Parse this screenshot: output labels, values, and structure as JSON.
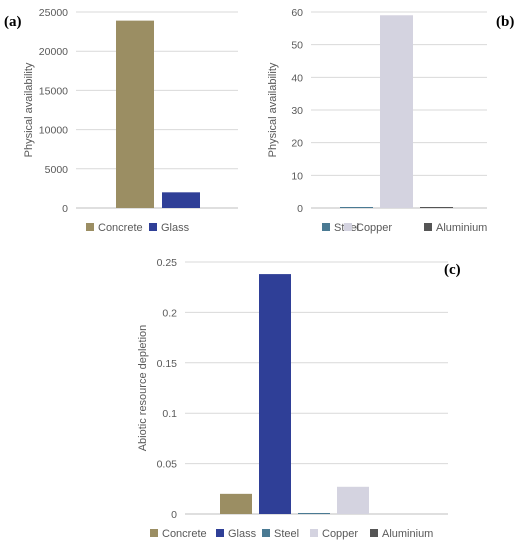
{
  "panels": [
    {
      "label": "(a)"
    },
    {
      "label": "(b)"
    },
    {
      "label": "(c)"
    }
  ],
  "chart_data": [
    {
      "type": "bar",
      "categories": [
        "Concrete",
        "Glass"
      ],
      "values": [
        23900,
        2000
      ],
      "colors": [
        "#9b8e63",
        "#2f3f97"
      ],
      "ylabel": "Physical availability",
      "ylim": [
        0,
        25000
      ],
      "yticks": [
        "0",
        "5000",
        "10000",
        "15000",
        "20000",
        "25000"
      ],
      "grid": true,
      "legend": "bottom"
    },
    {
      "type": "bar",
      "categories": [
        "Steel",
        "Copper",
        "Aluminium"
      ],
      "values": [
        0.1,
        59,
        0.1
      ],
      "colors": [
        "#4a7a93",
        "#d4d3e0",
        "#555555"
      ],
      "ylabel": "Physical availability",
      "ylim": [
        0,
        60
      ],
      "yticks": [
        "0",
        "10",
        "20",
        "30",
        "40",
        "50",
        "60"
      ],
      "grid": true,
      "legend": "bottom"
    },
    {
      "type": "bar",
      "categories": [
        "Concrete",
        "Glass",
        "Steel",
        "Copper",
        "Aluminium"
      ],
      "values": [
        0.02,
        0.238,
        0.001,
        0.027,
        0.0
      ],
      "colors": [
        "#9b8e63",
        "#2f3f97",
        "#4a7a93",
        "#d4d3e0",
        "#555555"
      ],
      "ylabel": "Abiotic resource depletion",
      "ylim": [
        0,
        0.25
      ],
      "yticks": [
        "0",
        "0.05",
        "0.1",
        "0.15",
        "0.2",
        "0.25"
      ],
      "grid": true,
      "legend": "bottom"
    }
  ]
}
